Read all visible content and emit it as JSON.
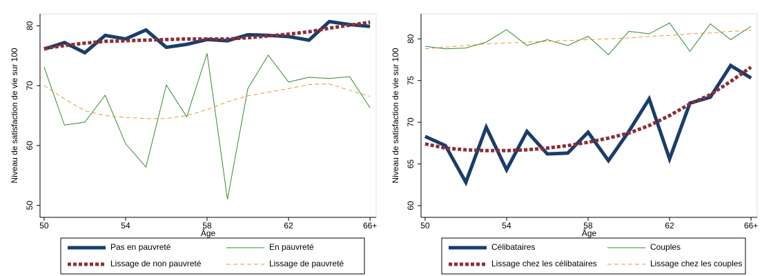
{
  "chart_data": [
    {
      "type": "line",
      "x_label": "Âge",
      "y_label": "Niveau de satisfaction de vie sur 100",
      "x": [
        50,
        51,
        52,
        53,
        54,
        55,
        56,
        57,
        58,
        59,
        60,
        61,
        62,
        63,
        64,
        65,
        66
      ],
      "xlim": [
        49.8,
        66.3
      ],
      "xticks": [
        50,
        54,
        58,
        62,
        {
          "value": 66,
          "label": "66+"
        }
      ],
      "ylim": [
        48,
        82
      ],
      "yticks": [
        50,
        60,
        70,
        80
      ],
      "series": [
        {
          "name": "Pas en pauvreté",
          "color": "#1a3d6b",
          "line_width": 5,
          "dash": "none",
          "values": [
            76.1,
            77.2,
            75.5,
            78.4,
            77.8,
            79.3,
            76.4,
            76.9,
            77.7,
            77.5,
            78.5,
            78.4,
            78.2,
            77.6,
            80.7,
            80.2,
            79.9
          ]
        },
        {
          "name": "En pauvreté",
          "color": "#2e8b2e",
          "line_width": 1,
          "dash": "none",
          "values": [
            73.1,
            63.4,
            63.9,
            68.4,
            60.3,
            56.4,
            70.1,
            64.8,
            75.4,
            51.0,
            69.5,
            75.1,
            70.6,
            71.4,
            71.2,
            71.5,
            66.3
          ]
        },
        {
          "name": "Lissage de non pauvreté",
          "color": "#8b2f35",
          "line_width": 5,
          "dash": "5,3",
          "values": [
            76.2,
            76.7,
            77.1,
            77.4,
            77.5,
            77.6,
            77.7,
            77.8,
            77.8,
            77.8,
            78.0,
            78.3,
            78.6,
            79.0,
            79.6,
            80.1,
            80.6
          ]
        },
        {
          "name": "Lissage de pauvreté",
          "color": "#e8962e",
          "line_width": 1,
          "dash": "6,4",
          "values": [
            70.0,
            67.8,
            65.8,
            65.0,
            64.7,
            64.5,
            64.5,
            65.0,
            66.0,
            67.3,
            68.3,
            68.9,
            69.5,
            70.2,
            70.3,
            69.2,
            68.2
          ]
        }
      ]
    },
    {
      "type": "line",
      "x_label": "Âge",
      "y_label": "Niveau de satisfaction de vie sur 100",
      "x": [
        50,
        51,
        52,
        53,
        54,
        55,
        56,
        57,
        58,
        59,
        60,
        61,
        62,
        63,
        64,
        65,
        66
      ],
      "xlim": [
        49.8,
        66.3
      ],
      "xticks": [
        50,
        54,
        58,
        62,
        {
          "value": 66,
          "label": "66+"
        }
      ],
      "ylim": [
        58.6,
        83
      ],
      "yticks": [
        60,
        65,
        70,
        75,
        80
      ],
      "series": [
        {
          "name": "Célibataires",
          "color": "#1a3d6b",
          "line_width": 5,
          "dash": "none",
          "values": [
            68.3,
            67.2,
            62.8,
            69.4,
            64.3,
            68.9,
            66.2,
            66.3,
            68.8,
            65.4,
            68.9,
            72.8,
            65.6,
            72.3,
            73.0,
            76.8,
            75.3
          ]
        },
        {
          "name": "Couples",
          "color": "#2e8b2e",
          "line_width": 1,
          "dash": "none",
          "values": [
            79.1,
            78.8,
            78.9,
            79.6,
            81.1,
            79.2,
            79.9,
            79.2,
            80.3,
            78.1,
            80.9,
            80.6,
            81.9,
            78.5,
            81.8,
            79.9,
            81.5
          ]
        },
        {
          "name": "Lissage chez les célibataires",
          "color": "#8b2f35",
          "line_width": 5,
          "dash": "5,3",
          "values": [
            67.4,
            66.9,
            66.7,
            66.6,
            66.6,
            66.7,
            66.9,
            67.2,
            67.6,
            68.1,
            68.7,
            69.6,
            70.8,
            72.2,
            73.3,
            74.9,
            76.6
          ]
        },
        {
          "name": "Lissage chez les couples",
          "color": "#e8962e",
          "line_width": 1,
          "dash": "6,4",
          "values": [
            78.8,
            79.0,
            79.2,
            79.4,
            79.5,
            79.6,
            79.7,
            79.8,
            79.9,
            80.0,
            80.1,
            80.3,
            80.4,
            80.6,
            80.7,
            80.9,
            81.0
          ]
        }
      ]
    }
  ]
}
